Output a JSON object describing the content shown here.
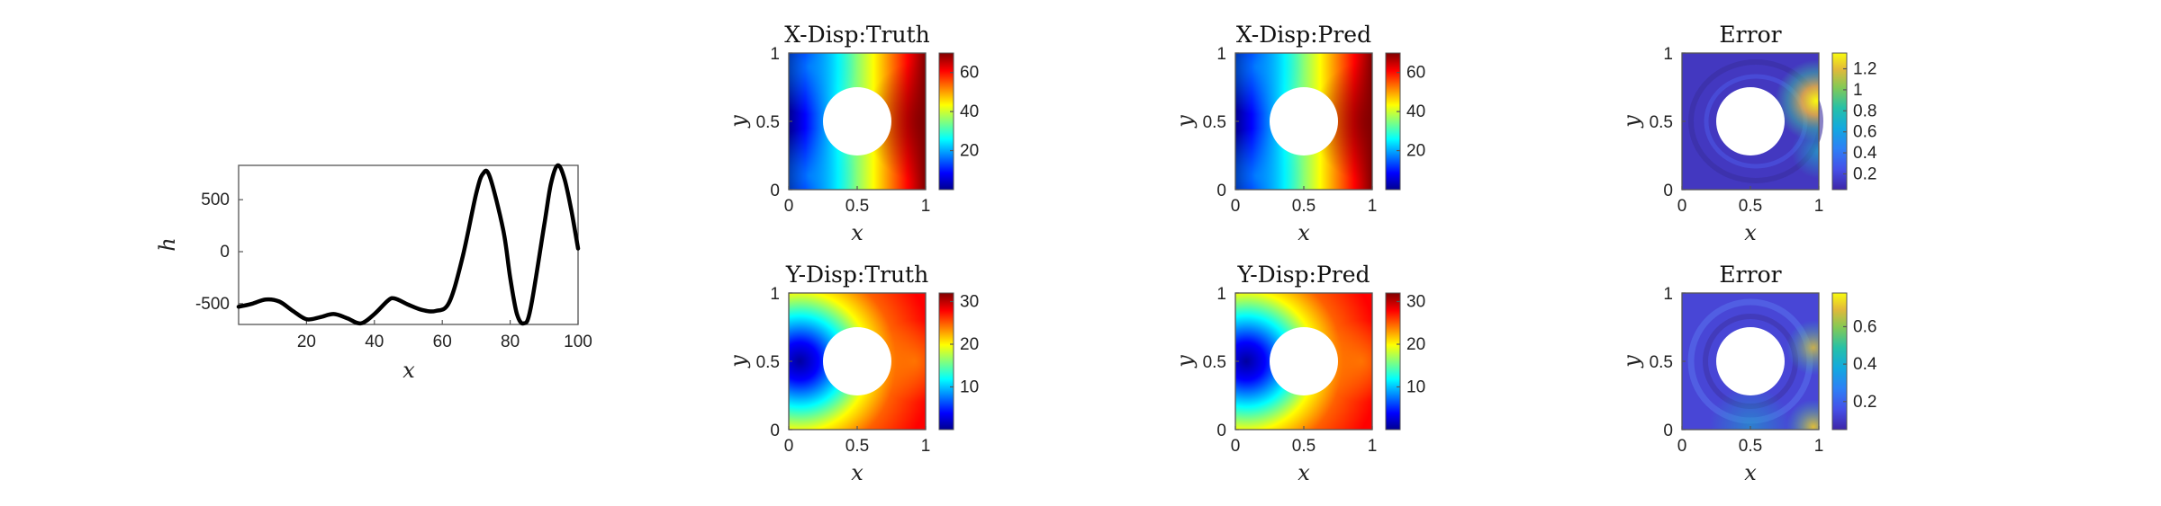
{
  "chart_data": [
    {
      "type": "line",
      "title": "",
      "xlabel": "x",
      "ylabel": "h",
      "xlim": [
        0,
        100
      ],
      "ylim": [
        -700,
        830
      ],
      "xticks": [
        "20",
        "40",
        "60",
        "80",
        "100"
      ],
      "yticks": [
        "-500",
        "0",
        "500"
      ],
      "x": [
        0,
        4,
        8,
        12,
        16,
        20,
        24,
        28,
        32,
        36,
        40,
        44,
        46,
        50,
        54,
        58,
        62,
        66,
        70,
        72,
        74,
        78,
        80,
        82,
        84,
        86,
        90,
        92,
        94,
        96,
        98,
        100
      ],
      "y": [
        -530,
        -500,
        -460,
        -480,
        -570,
        -650,
        -630,
        -600,
        -640,
        -690,
        -600,
        -470,
        -450,
        -510,
        -560,
        -570,
        -490,
        -50,
        560,
        750,
        720,
        200,
        -250,
        -600,
        -690,
        -550,
        250,
        650,
        830,
        700,
        400,
        30
      ]
    },
    {
      "type": "heatmap",
      "title": "X-Disp:Truth",
      "xlabel": "x",
      "ylabel": "y",
      "xticks": [
        "0",
        "0.5",
        "1"
      ],
      "yticks": [
        "0",
        "0.5",
        "1"
      ],
      "colormap": "jet",
      "colorbar_range": [
        0,
        70
      ],
      "colorbar_ticks": [
        "20",
        "40",
        "60"
      ]
    },
    {
      "type": "heatmap",
      "title": "X-Disp:Pred",
      "xlabel": "x",
      "ylabel": "y",
      "xticks": [
        "0",
        "0.5",
        "1"
      ],
      "yticks": [
        "0",
        "0.5",
        "1"
      ],
      "colormap": "jet",
      "colorbar_range": [
        0,
        70
      ],
      "colorbar_ticks": [
        "20",
        "40",
        "60"
      ]
    },
    {
      "type": "heatmap",
      "title": "Error",
      "xlabel": "x",
      "ylabel": "y",
      "xticks": [
        "0",
        "0.5",
        "1"
      ],
      "yticks": [
        "0",
        "0.5",
        "1"
      ],
      "colormap": "parula",
      "colorbar_range": [
        0.05,
        1.35
      ],
      "colorbar_ticks": [
        "0.2",
        "0.4",
        "0.6",
        "0.8",
        "1",
        "1.2"
      ]
    },
    {
      "type": "heatmap",
      "title": "Y-Disp:Truth",
      "xlabel": "x",
      "ylabel": "y",
      "xticks": [
        "0",
        "0.5",
        "1"
      ],
      "yticks": [
        "0",
        "0.5",
        "1"
      ],
      "colormap": "jet",
      "colorbar_range": [
        0,
        32
      ],
      "colorbar_ticks": [
        "10",
        "20",
        "30"
      ]
    },
    {
      "type": "heatmap",
      "title": "Y-Disp:Pred",
      "xlabel": "x",
      "ylabel": "y",
      "xticks": [
        "0",
        "0.5",
        "1"
      ],
      "yticks": [
        "0",
        "0.5",
        "1"
      ],
      "colormap": "jet",
      "colorbar_range": [
        0,
        32
      ],
      "colorbar_ticks": [
        "10",
        "20",
        "30"
      ]
    },
    {
      "type": "heatmap",
      "title": "Error",
      "xlabel": "x",
      "ylabel": "y",
      "xticks": [
        "0",
        "0.5",
        "1"
      ],
      "yticks": [
        "0",
        "0.5",
        "1"
      ],
      "colormap": "parula",
      "colorbar_range": [
        0.05,
        0.78
      ],
      "colorbar_ticks": [
        "0.2",
        "0.4",
        "0.6"
      ]
    }
  ]
}
